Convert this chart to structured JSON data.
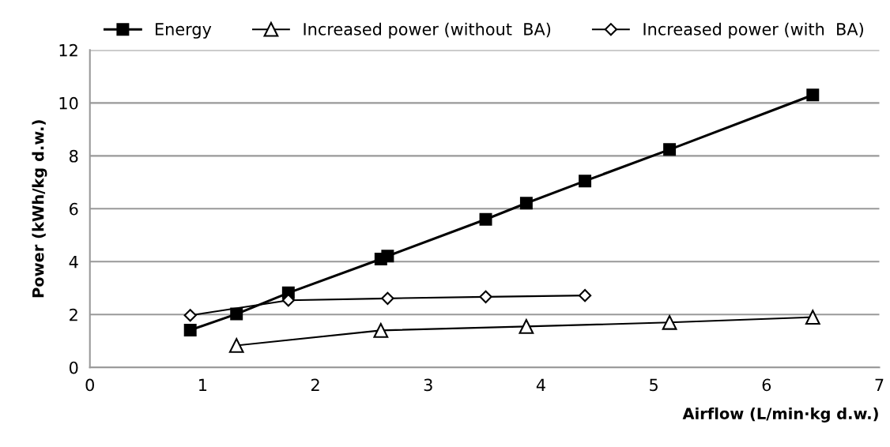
{
  "chart_data": {
    "type": "line",
    "xlabel": "Airflow (L/min·kg d.w.)",
    "ylabel": "Power (kWh/kg d.w.)",
    "xlim": [
      0,
      7
    ],
    "xticks": [
      0,
      1,
      2,
      3,
      4,
      5,
      6,
      7
    ],
    "ylim": [
      0,
      12
    ],
    "yticks": [
      0,
      2,
      4,
      6,
      8,
      10,
      12
    ],
    "grid": "y",
    "legend": "top",
    "line_style": "solid",
    "series": [
      {
        "name": "Energy",
        "color": "#000000",
        "marker": "square",
        "x": [
          0.89,
          1.3,
          1.76,
          2.58,
          2.64,
          3.51,
          3.87,
          4.39,
          5.14,
          6.41
        ],
        "values": [
          1.41,
          2.02,
          2.82,
          4.1,
          4.21,
          5.6,
          6.21,
          7.05,
          8.24,
          10.3
        ]
      },
      {
        "name": "Increased power (without  BA)",
        "color": "#000000",
        "marker": "triangle",
        "x": [
          1.3,
          2.58,
          3.87,
          5.14,
          6.41
        ],
        "values": [
          0.83,
          1.4,
          1.55,
          1.7,
          1.9
        ]
      },
      {
        "name": "Increased power (with  BA)",
        "color": "#000000",
        "marker": "diamond",
        "x": [
          0.89,
          1.76,
          2.64,
          3.51,
          4.39
        ],
        "values": [
          1.97,
          2.54,
          2.61,
          2.67,
          2.72
        ]
      }
    ]
  }
}
